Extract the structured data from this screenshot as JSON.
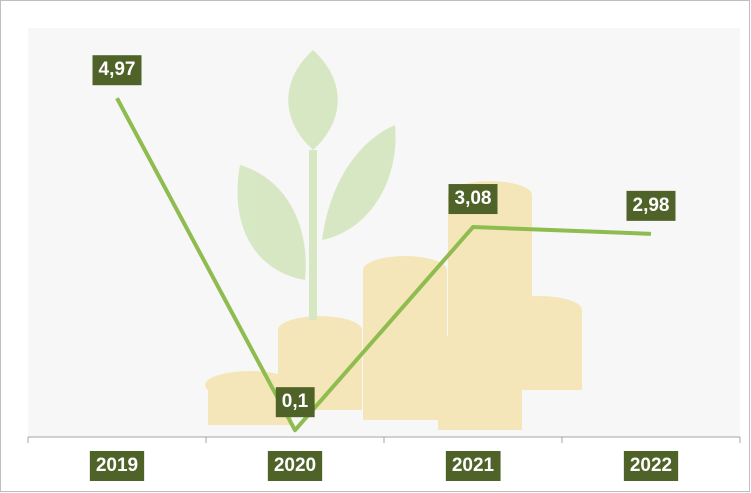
{
  "chart_data": {
    "type": "line",
    "categories": [
      "2019",
      "2020",
      "2021",
      "2022"
    ],
    "series": [
      {
        "color": "#8fbc4f",
        "values": [
          4.97,
          0.1,
          3.08,
          2.98
        ],
        "value_labels": [
          "4,97",
          "0,1",
          "3,08",
          "2,98"
        ]
      }
    ],
    "ylim": [
      0,
      6
    ],
    "label_color": "#4f6228"
  }
}
